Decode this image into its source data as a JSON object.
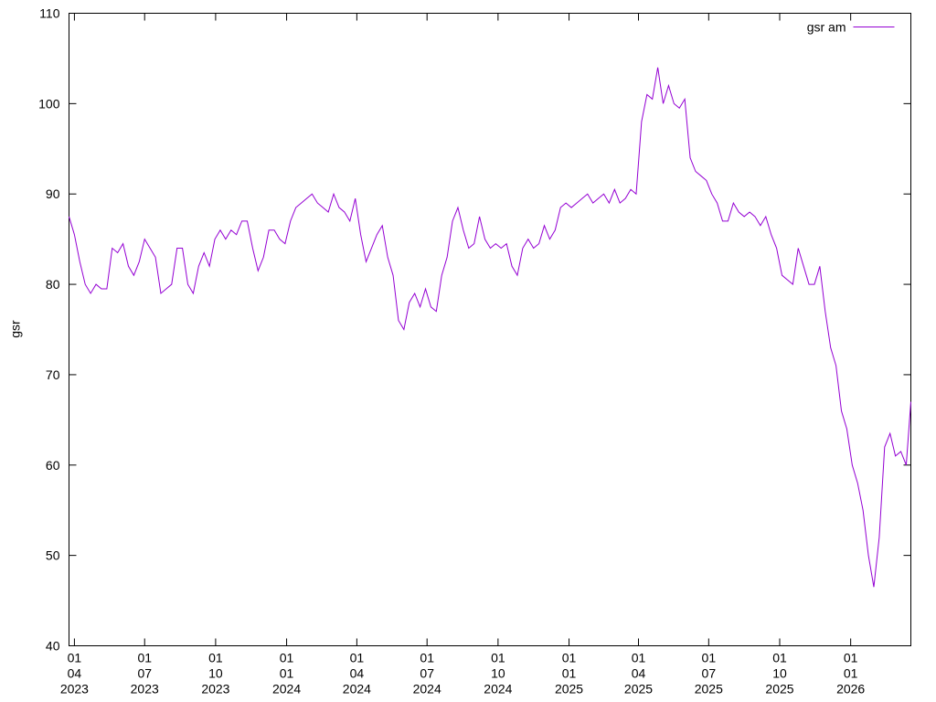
{
  "chart_data": {
    "type": "line",
    "ylabel": "gsr",
    "x": [
      "2023-03-25",
      "2023-04-01",
      "2023-04-08",
      "2023-04-15",
      "2023-04-22",
      "2023-04-29",
      "2023-05-06",
      "2023-05-13",
      "2023-05-20",
      "2023-05-27",
      "2023-06-03",
      "2023-06-10",
      "2023-06-17",
      "2023-06-24",
      "2023-07-01",
      "2023-07-08",
      "2023-07-15",
      "2023-07-22",
      "2023-07-29",
      "2023-08-05",
      "2023-08-12",
      "2023-08-19",
      "2023-08-26",
      "2023-09-02",
      "2023-09-09",
      "2023-09-16",
      "2023-09-23",
      "2023-09-30",
      "2023-10-07",
      "2023-10-14",
      "2023-10-21",
      "2023-10-28",
      "2023-11-04",
      "2023-11-11",
      "2023-11-18",
      "2023-11-25",
      "2023-12-02",
      "2023-12-09",
      "2023-12-16",
      "2023-12-23",
      "2023-12-30",
      "2024-01-06",
      "2024-01-13",
      "2024-01-20",
      "2024-01-27",
      "2024-02-03",
      "2024-02-10",
      "2024-02-17",
      "2024-02-24",
      "2024-03-02",
      "2024-03-09",
      "2024-03-16",
      "2024-03-23",
      "2024-03-30",
      "2024-04-06",
      "2024-04-13",
      "2024-04-20",
      "2024-04-27",
      "2024-05-04",
      "2024-05-11",
      "2024-05-18",
      "2024-05-25",
      "2024-06-01",
      "2024-06-08",
      "2024-06-15",
      "2024-06-22",
      "2024-06-29",
      "2024-07-06",
      "2024-07-13",
      "2024-07-20",
      "2024-07-27",
      "2024-08-03",
      "2024-08-10",
      "2024-08-17",
      "2024-08-24",
      "2024-08-31",
      "2024-09-07",
      "2024-09-14",
      "2024-09-21",
      "2024-09-28",
      "2024-10-05",
      "2024-10-12",
      "2024-10-19",
      "2024-10-26",
      "2024-11-02",
      "2024-11-09",
      "2024-11-16",
      "2024-11-23",
      "2024-11-30",
      "2024-12-07",
      "2024-12-14",
      "2024-12-21",
      "2024-12-28",
      "2025-01-04",
      "2025-01-11",
      "2025-01-18",
      "2025-01-25",
      "2025-02-01",
      "2025-02-08",
      "2025-02-15",
      "2025-02-22",
      "2025-03-01",
      "2025-03-08",
      "2025-03-15",
      "2025-03-22",
      "2025-03-29",
      "2025-04-05",
      "2025-04-12",
      "2025-04-19",
      "2025-04-26",
      "2025-05-03",
      "2025-05-10",
      "2025-05-17",
      "2025-05-24",
      "2025-05-31",
      "2025-06-07",
      "2025-06-14",
      "2025-06-21",
      "2025-06-28",
      "2025-07-05",
      "2025-07-12",
      "2025-07-19",
      "2025-07-26",
      "2025-08-02",
      "2025-08-09",
      "2025-08-16",
      "2025-08-23",
      "2025-08-30",
      "2025-09-06",
      "2025-09-13",
      "2025-09-20",
      "2025-09-27",
      "2025-10-04",
      "2025-10-11",
      "2025-10-18",
      "2025-10-25",
      "2025-11-01",
      "2025-11-08",
      "2025-11-15",
      "2025-11-22",
      "2025-11-29",
      "2025-12-06",
      "2025-12-13",
      "2025-12-20",
      "2025-12-27",
      "2026-01-03",
      "2026-01-10",
      "2026-01-17",
      "2026-01-24",
      "2026-01-31",
      "2026-02-07",
      "2026-02-14",
      "2026-02-21",
      "2026-02-28",
      "2026-03-07",
      "2026-03-14",
      "2026-03-20"
    ],
    "series": [
      {
        "name": "gsr am",
        "color": "#9400d3",
        "values": [
          87.5,
          85.5,
          82.5,
          80,
          79,
          80,
          79.5,
          79.5,
          84,
          83.5,
          84.5,
          82,
          81,
          82.5,
          85,
          84,
          83,
          79,
          79.5,
          80,
          84,
          84,
          80,
          79,
          82,
          83.5,
          82,
          85,
          86,
          85,
          86,
          85.5,
          87,
          87,
          84,
          81.5,
          83,
          86,
          86,
          85,
          84.5,
          87,
          88.5,
          89,
          89.5,
          90,
          89,
          88.5,
          88,
          90,
          88.5,
          88,
          87,
          89.5,
          85.5,
          82.5,
          84,
          85.5,
          86.5,
          83,
          81,
          76,
          75,
          78,
          79,
          77.5,
          79.5,
          77.5,
          77,
          81,
          83,
          87,
          88.5,
          86,
          84,
          84.5,
          87.5,
          85,
          84,
          84.5,
          84,
          84.5,
          82,
          81,
          84,
          85,
          84,
          84.5,
          86.5,
          85,
          86,
          88.5,
          89,
          88.5,
          89,
          89.5,
          90,
          89,
          89.5,
          90,
          89,
          90.5,
          89,
          89.5,
          90.5,
          90,
          98,
          101,
          100.5,
          104,
          100,
          102,
          100,
          99.5,
          100.5,
          94,
          92.5,
          92,
          91.5,
          90,
          89,
          87,
          87,
          89,
          88,
          87.5,
          88,
          87.5,
          86.5,
          87.5,
          85.5,
          84,
          81,
          80.5,
          80,
          84,
          82,
          80,
          80,
          82,
          77,
          73,
          71,
          66,
          64,
          60,
          58,
          55,
          50,
          46.5,
          52,
          62,
          63.5,
          61,
          61.5,
          60,
          67
        ]
      }
    ],
    "xlim": [
      "2023-03-25",
      "2026-03-20"
    ],
    "xticks": [
      {
        "value": "2023-04-01",
        "label": [
          "01",
          "04",
          "2023"
        ]
      },
      {
        "value": "2023-07-01",
        "label": [
          "01",
          "07",
          "2023"
        ]
      },
      {
        "value": "2023-10-01",
        "label": [
          "01",
          "10",
          "2023"
        ]
      },
      {
        "value": "2024-01-01",
        "label": [
          "01",
          "01",
          "2024"
        ]
      },
      {
        "value": "2024-04-01",
        "label": [
          "01",
          "04",
          "2024"
        ]
      },
      {
        "value": "2024-07-01",
        "label": [
          "01",
          "07",
          "2024"
        ]
      },
      {
        "value": "2024-10-01",
        "label": [
          "01",
          "10",
          "2024"
        ]
      },
      {
        "value": "2025-01-01",
        "label": [
          "01",
          "01",
          "2025"
        ]
      },
      {
        "value": "2025-04-01",
        "label": [
          "01",
          "04",
          "2025"
        ]
      },
      {
        "value": "2025-07-01",
        "label": [
          "01",
          "07",
          "2025"
        ]
      },
      {
        "value": "2025-10-01",
        "label": [
          "01",
          "10",
          "2025"
        ]
      },
      {
        "value": "2026-01-01",
        "label": [
          "01",
          "01",
          "2026"
        ]
      }
    ],
    "ylim": [
      40,
      110
    ],
    "yticks": [
      40,
      50,
      60,
      70,
      80,
      90,
      100,
      110
    ],
    "legend": "upper right",
    "grid": false
  }
}
